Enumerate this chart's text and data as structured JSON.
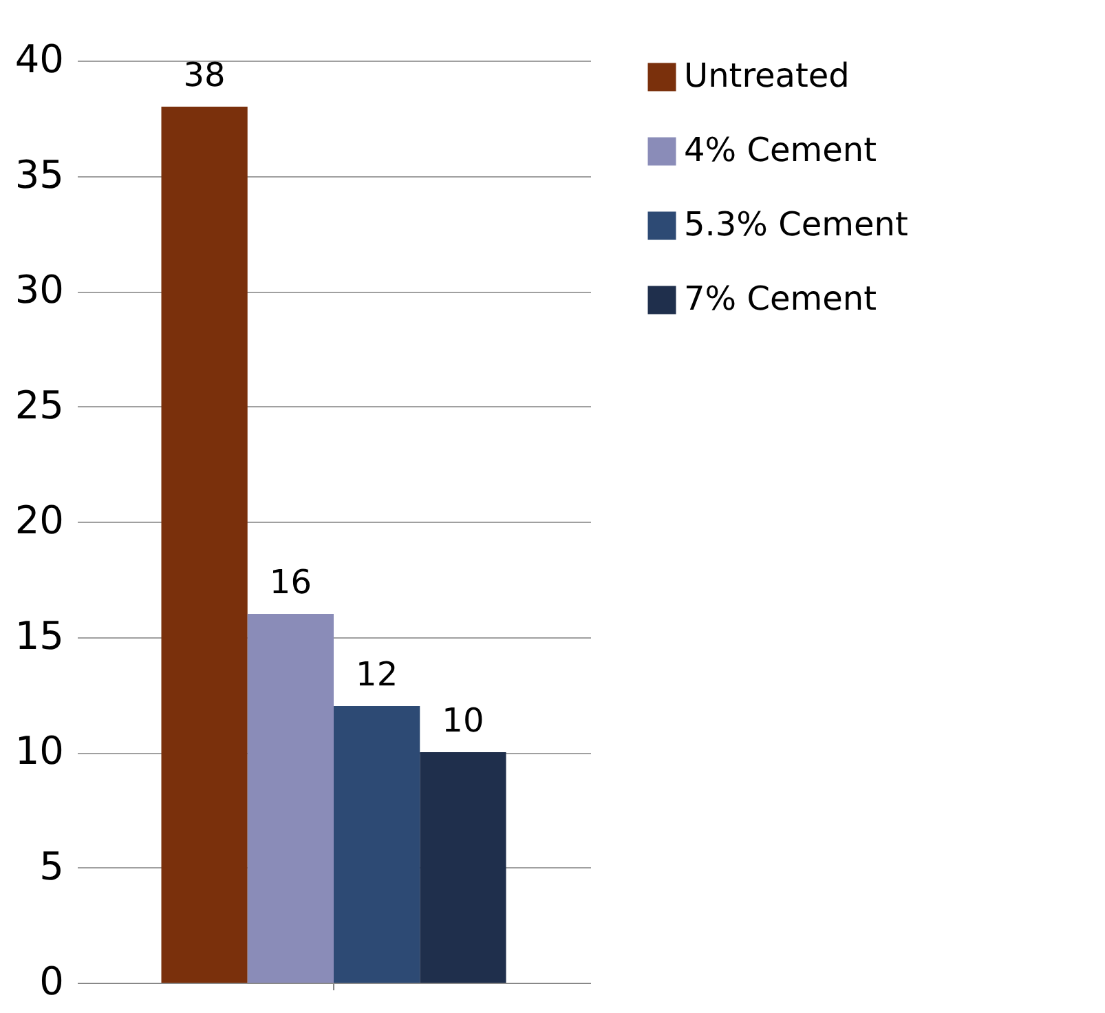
{
  "chart_data": {
    "type": "bar",
    "categories": [
      null
    ],
    "series": [
      {
        "name": "Untreated",
        "color": "#7a300c",
        "values": [
          38
        ]
      },
      {
        "name": "4% Cement",
        "color": "#8a8cb8",
        "values": [
          16
        ]
      },
      {
        "name": "5.3% Cement",
        "color": "#2d4a74",
        "values": [
          12
        ]
      },
      {
        "name": "7% Cement",
        "color": "#1f2f4c",
        "values": [
          10
        ]
      }
    ],
    "ylim": [
      0,
      40
    ],
    "yticks": [
      0,
      5,
      10,
      15,
      20,
      25,
      30,
      35,
      40
    ],
    "grid": "y",
    "legend": "right",
    "data_labels": true,
    "tick_labels": "y"
  }
}
